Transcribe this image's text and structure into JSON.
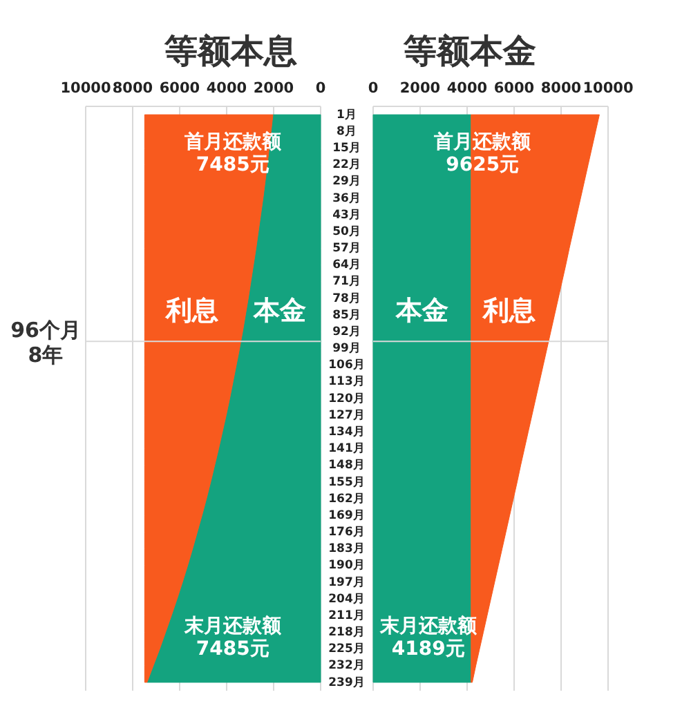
{
  "chart_data": [
    {
      "type": "area",
      "orientation": "horizontal",
      "stacked": true,
      "title": "等额本息",
      "x": [
        1,
        8,
        15,
        22,
        29,
        36,
        43,
        50,
        57,
        64,
        71,
        78,
        85,
        92,
        99,
        106,
        113,
        120,
        127,
        134,
        141,
        148,
        155,
        162,
        169,
        176,
        183,
        190,
        197,
        204,
        211,
        218,
        225,
        232,
        239
      ],
      "series": [
        {
          "name": "本金",
          "color": "#14a37f",
          "values": [
            2030,
            2110,
            2190,
            2270,
            2360,
            2450,
            2550,
            2650,
            2750,
            2860,
            2970,
            3080,
            3200,
            3320,
            3450,
            3590,
            3730,
            3870,
            4020,
            4180,
            4340,
            4510,
            4680,
            4860,
            5050,
            5250,
            5450,
            5660,
            5880,
            6110,
            6350,
            6600,
            6850,
            7120,
            7390
          ]
        },
        {
          "name": "利息",
          "color": "#f85a1e",
          "values": [
            5460,
            5380,
            5300,
            5220,
            5130,
            5040,
            4940,
            4840,
            4740,
            4630,
            4520,
            4410,
            4290,
            4170,
            4040,
            3900,
            3760,
            3620,
            3470,
            3310,
            3150,
            2980,
            2810,
            2630,
            2440,
            2240,
            2040,
            1830,
            1610,
            1380,
            1140,
            890,
            640,
            370,
            100
          ]
        }
      ],
      "xlim": [
        10000,
        0
      ],
      "xticks": [
        10000,
        8000,
        6000,
        4000,
        2000,
        0
      ],
      "ylim": [
        242.5,
        -2.5
      ],
      "yticks": [
        {
          "value": 1,
          "label": "1月"
        },
        {
          "value": 8,
          "label": "8月"
        },
        {
          "value": 15,
          "label": "15月"
        },
        {
          "value": 22,
          "label": "22月"
        },
        {
          "value": 29,
          "label": "29月"
        },
        {
          "value": 36,
          "label": "36月"
        },
        {
          "value": 43,
          "label": "43月"
        },
        {
          "value": 50,
          "label": "50月"
        },
        {
          "value": 57,
          "label": "57月"
        },
        {
          "value": 64,
          "label": "64月"
        },
        {
          "value": 71,
          "label": "71月"
        },
        {
          "value": 78,
          "label": "78月"
        },
        {
          "value": 85,
          "label": "85月"
        },
        {
          "value": 92,
          "label": "92月"
        },
        {
          "value": 99,
          "label": "99月"
        },
        {
          "value": 106,
          "label": "106月"
        },
        {
          "value": 113,
          "label": "113月"
        },
        {
          "value": 120,
          "label": "120月"
        },
        {
          "value": 127,
          "label": "127月"
        },
        {
          "value": 134,
          "label": "134月"
        },
        {
          "value": 141,
          "label": "141月"
        },
        {
          "value": 148,
          "label": "148月"
        },
        {
          "value": 155,
          "label": "155月"
        },
        {
          "value": 162,
          "label": "162月"
        },
        {
          "value": 169,
          "label": "169月"
        },
        {
          "value": 176,
          "label": "176月"
        },
        {
          "value": 183,
          "label": "183月"
        },
        {
          "value": 190,
          "label": "190月"
        },
        {
          "value": 197,
          "label": "197月"
        },
        {
          "value": 204,
          "label": "204月"
        },
        {
          "value": 211,
          "label": "211月"
        },
        {
          "value": 218,
          "label": "218月"
        },
        {
          "value": 225,
          "label": "225月"
        },
        {
          "value": 232,
          "label": "232月"
        },
        {
          "value": 239,
          "label": "239月"
        }
      ],
      "grid": "x",
      "ref_lines": [
        {
          "axis": "y",
          "value": 96,
          "label": "96个月\n8年"
        }
      ],
      "annotations": [
        "首月还款额\n7485元",
        "末月还款额\n7485元"
      ]
    },
    {
      "type": "area",
      "orientation": "horizontal",
      "stacked": true,
      "title": "等额本金",
      "x": [
        1,
        8,
        15,
        22,
        29,
        36,
        43,
        50,
        57,
        64,
        71,
        78,
        85,
        92,
        99,
        106,
        113,
        120,
        127,
        134,
        141,
        148,
        155,
        162,
        169,
        176,
        183,
        190,
        197,
        204,
        211,
        218,
        225,
        232,
        239
      ],
      "series": [
        {
          "name": "本金",
          "color": "#14a37f",
          "values": [
            4170,
            4170,
            4170,
            4170,
            4170,
            4170,
            4170,
            4170,
            4170,
            4170,
            4170,
            4170,
            4170,
            4170,
            4170,
            4170,
            4170,
            4170,
            4170,
            4170,
            4170,
            4170,
            4170,
            4170,
            4170,
            4170,
            4170,
            4170,
            4170,
            4170,
            4170,
            4170,
            4170,
            4170,
            4170
          ]
        },
        {
          "name": "利息",
          "color": "#f85a1e",
          "values": [
            5460,
            5300,
            5140,
            4980,
            4820,
            4660,
            4500,
            4340,
            4180,
            4030,
            3870,
            3710,
            3550,
            3390,
            3230,
            3070,
            2910,
            2750,
            2590,
            2430,
            2270,
            2110,
            1960,
            1800,
            1640,
            1480,
            1320,
            1160,
            1000,
            840,
            680,
            520,
            360,
            200,
            50
          ]
        }
      ],
      "xlim": [
        0,
        10000
      ],
      "xticks": [
        0,
        2000,
        4000,
        6000,
        8000,
        10000
      ],
      "ylim": [
        242.5,
        -2.5
      ],
      "tick_labels": "x",
      "grid": "x",
      "ref_lines": [
        {
          "axis": "y",
          "value": 96
        }
      ],
      "annotations": [
        "首月还款额\n9625元",
        "末月还款额\n4189元"
      ]
    }
  ]
}
